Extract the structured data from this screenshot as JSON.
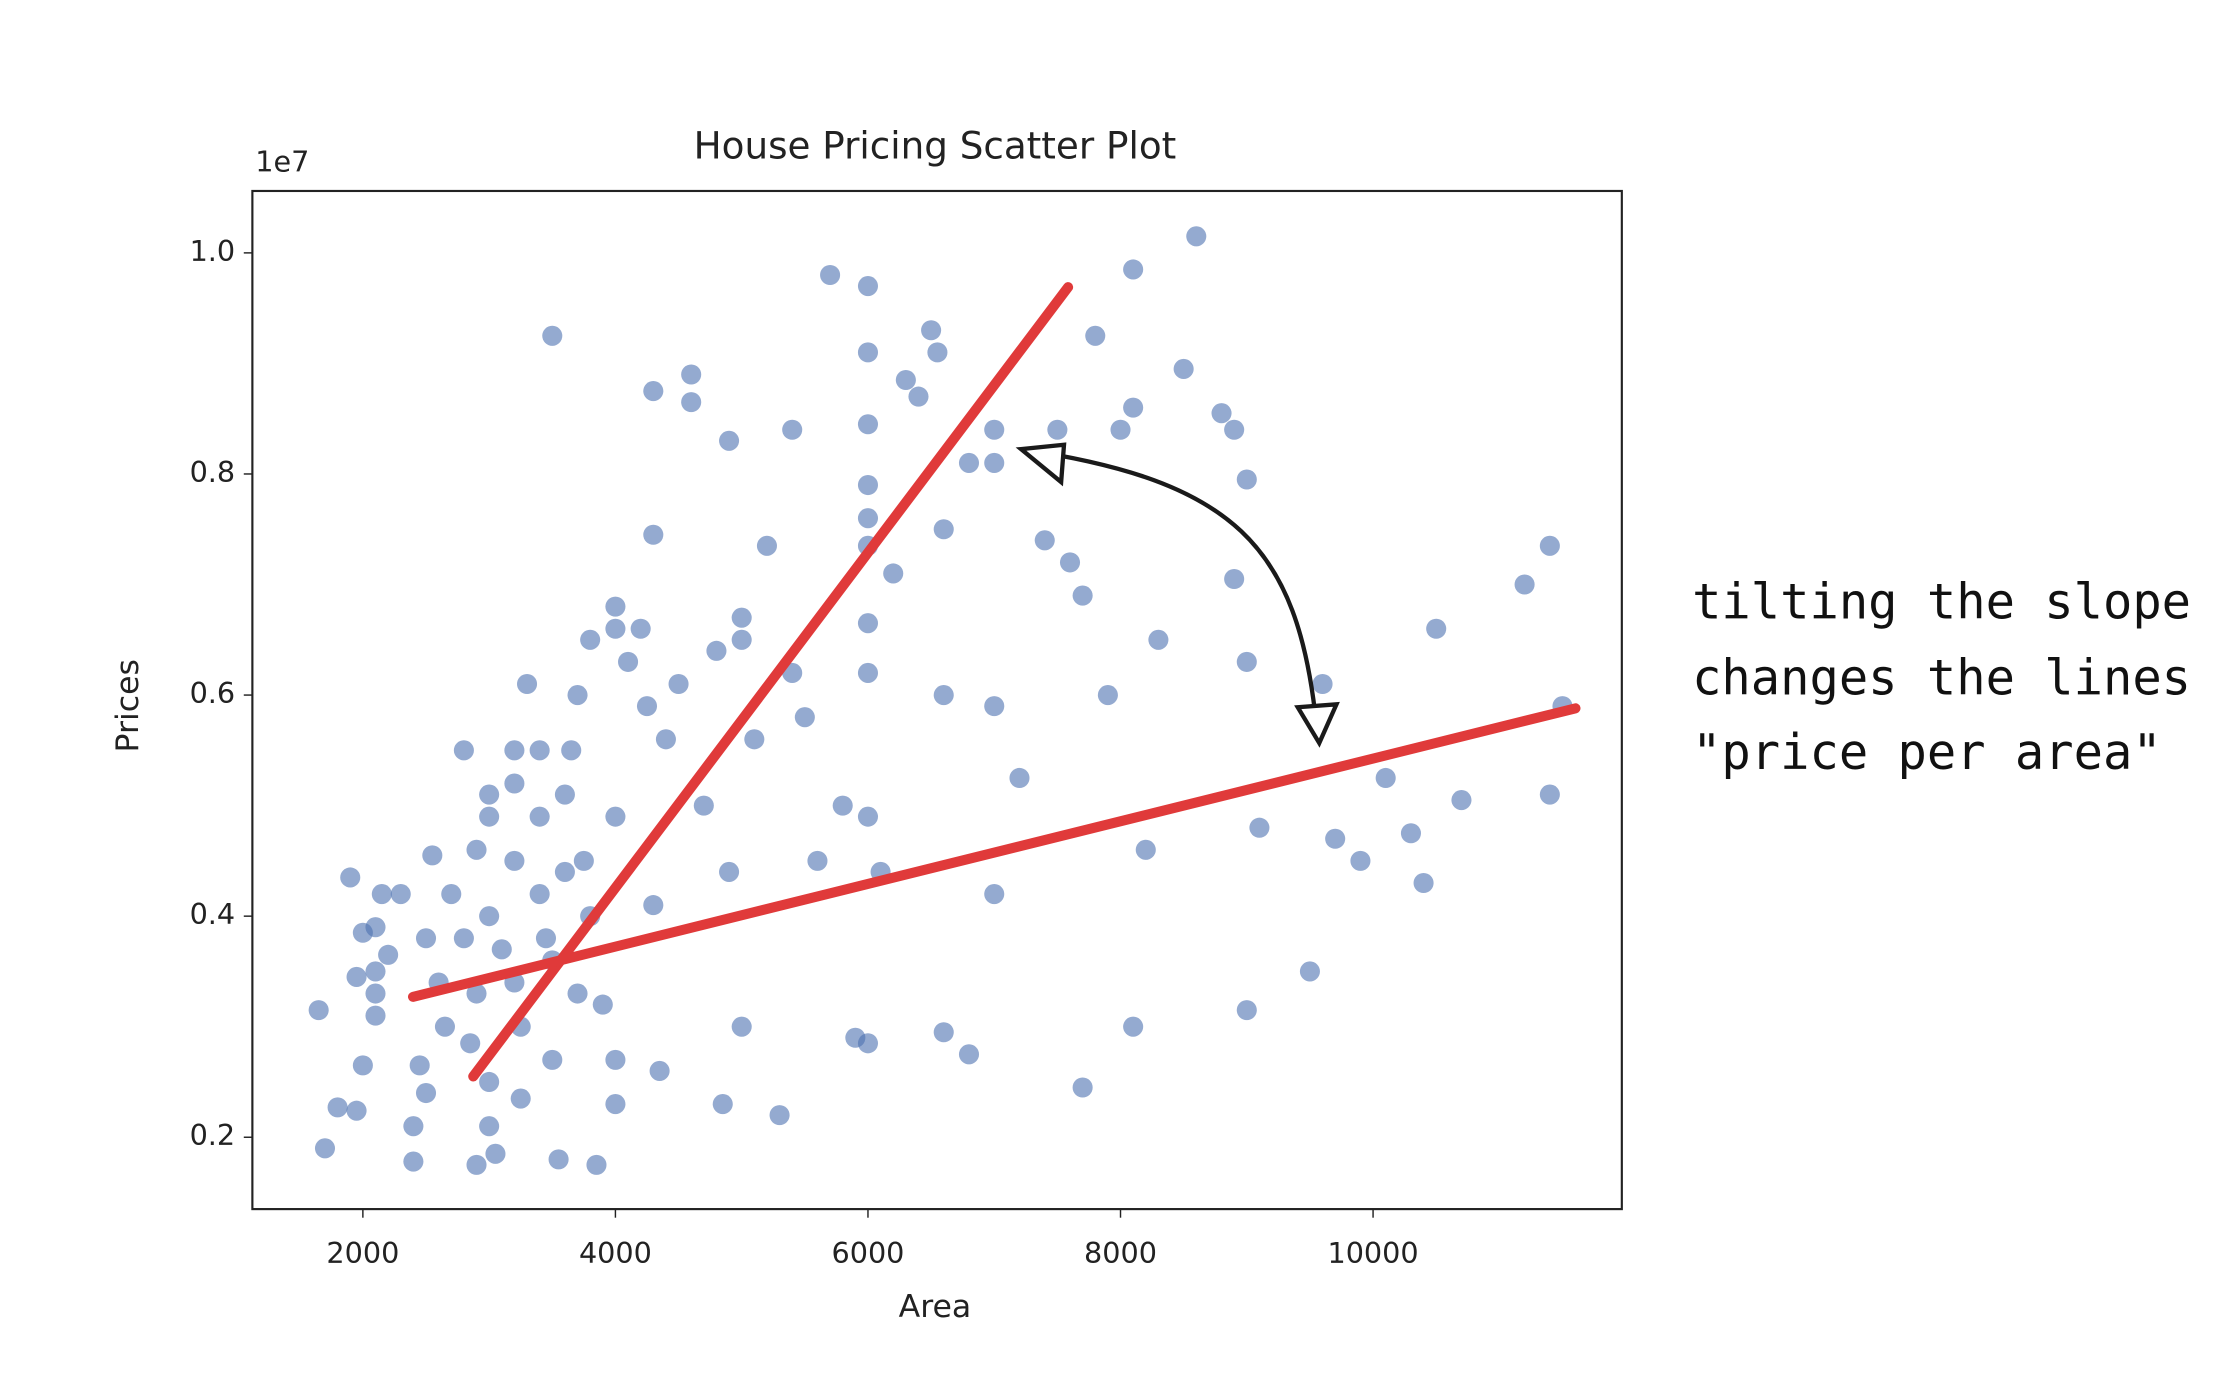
{
  "chart_data": {
    "type": "scatter",
    "title": "House Pricing Scatter Plot",
    "x_label": "Area",
    "y_label": "Prices",
    "y_offset_label": "1e7",
    "xlim": [
      1125,
      11970
    ],
    "ylim": [
      0.135,
      1.056
    ],
    "xticks": [
      2000,
      4000,
      6000,
      8000,
      10000
    ],
    "yticks": [
      0.2,
      0.4,
      0.6,
      0.8,
      {
        "value": 1,
        "label": "1.0"
      }
    ],
    "series": [
      {
        "color": "#4c72b0",
        "x": [
          1650,
          1700,
          1800,
          1900,
          1950,
          1950,
          2000,
          2000,
          2100,
          2100,
          2100,
          2100,
          2150,
          2200,
          2300,
          2400,
          2400,
          2450,
          2500,
          2500,
          2550,
          2600,
          2650,
          2700,
          2800,
          2800,
          2850,
          2900,
          2900,
          2900,
          3000,
          3000,
          3000,
          3000,
          3000,
          3050,
          3100,
          3200,
          3200,
          3200,
          3200,
          3250,
          3250,
          3300,
          3400,
          3400,
          3400,
          3450,
          3500,
          3500,
          3500,
          3550,
          3600,
          3600,
          3650,
          3700,
          3700,
          3750,
          3800,
          3800,
          3850,
          3900,
          4000,
          4000,
          4000,
          4000,
          4000,
          4100,
          4200,
          4250,
          4300,
          4300,
          4300,
          4350,
          4400,
          4500,
          4600,
          4600,
          4700,
          4800,
          4850,
          4900,
          4900,
          5000,
          5000,
          5000,
          5100,
          5200,
          5300,
          5400,
          5400,
          5500,
          5600,
          5700,
          5800,
          5900,
          6000,
          6000,
          6000,
          6000,
          6000,
          6000,
          6000,
          6000,
          6000,
          6000,
          6100,
          6200,
          6300,
          6400,
          6500,
          6550,
          6600,
          6600,
          6600,
          6800,
          6800,
          7000,
          7000,
          7000,
          7000,
          7200,
          7400,
          7500,
          7600,
          7700,
          7700,
          7800,
          7900,
          8000,
          8100,
          8100,
          8100,
          8200,
          8300,
          8500,
          8600,
          8800,
          8900,
          9000,
          8900,
          9000,
          9000,
          9100,
          9500,
          9600,
          9700,
          9900,
          10100,
          10300,
          10400,
          10500,
          10700,
          11200,
          11400,
          11400,
          11500
        ],
        "y": [
          0.315,
          0.19,
          0.227,
          0.435,
          0.345,
          0.224,
          0.265,
          0.385,
          0.33,
          0.35,
          0.39,
          0.31,
          0.42,
          0.365,
          0.42,
          0.21,
          0.178,
          0.265,
          0.38,
          0.24,
          0.455,
          0.34,
          0.3,
          0.42,
          0.55,
          0.38,
          0.285,
          0.46,
          0.33,
          0.175,
          0.51,
          0.49,
          0.4,
          0.25,
          0.21,
          0.185,
          0.37,
          0.55,
          0.52,
          0.45,
          0.34,
          0.3,
          0.235,
          0.61,
          0.55,
          0.49,
          0.42,
          0.38,
          0.925,
          0.36,
          0.27,
          0.18,
          0.51,
          0.44,
          0.55,
          0.6,
          0.33,
          0.45,
          0.65,
          0.4,
          0.175,
          0.32,
          0.68,
          0.66,
          0.49,
          0.27,
          0.23,
          0.63,
          0.66,
          0.59,
          0.745,
          0.875,
          0.41,
          0.26,
          0.56,
          0.61,
          0.89,
          0.865,
          0.5,
          0.64,
          0.23,
          0.83,
          0.44,
          0.67,
          0.65,
          0.3,
          0.56,
          0.735,
          0.22,
          0.84,
          0.62,
          0.58,
          0.45,
          0.98,
          0.5,
          0.29,
          0.97,
          0.91,
          0.845,
          0.79,
          0.76,
          0.735,
          0.665,
          0.62,
          0.49,
          0.285,
          0.44,
          0.71,
          0.885,
          0.87,
          0.93,
          0.91,
          0.75,
          0.6,
          0.295,
          0.81,
          0.275,
          0.84,
          0.81,
          0.59,
          0.42,
          0.525,
          0.74,
          0.84,
          0.72,
          0.69,
          0.245,
          0.925,
          0.6,
          0.84,
          0.985,
          0.86,
          0.3,
          0.46,
          0.65,
          0.895,
          1.015,
          0.855,
          0.84,
          0.795,
          0.705,
          0.63,
          0.315,
          0.48,
          0.35,
          0.61,
          0.47,
          0.45,
          0.525,
          0.475,
          0.43,
          0.66,
          0.505,
          0.7,
          0.735,
          0.51,
          0.59
        ]
      }
    ],
    "lines": [
      {
        "color": "#e03a3a",
        "x": [
          2874,
          7585
        ],
        "y": [
          0.255,
          0.969
        ]
      },
      {
        "color": "#e03a3a",
        "x": [
          2397,
          11603
        ],
        "y": [
          0.327,
          0.588
        ]
      }
    ],
    "annotation": [
      "tilting the slope",
      "changes the lines",
      "\"price per area\""
    ]
  }
}
